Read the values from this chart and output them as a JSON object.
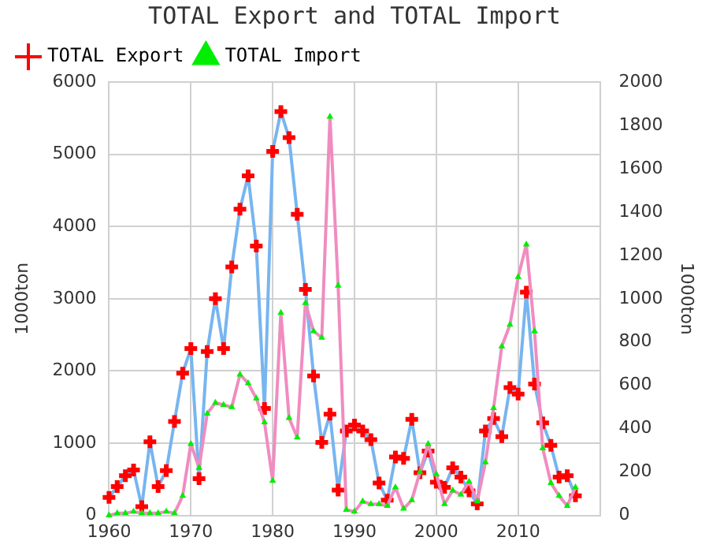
{
  "chart_data": {
    "type": "line",
    "title": "TOTAL Export and TOTAL Import",
    "ylabel": "1000ton",
    "y2label": "1000ton",
    "x": [
      1960,
      1961,
      1962,
      1963,
      1964,
      1965,
      1966,
      1967,
      1968,
      1969,
      1970,
      1971,
      1972,
      1973,
      1974,
      1975,
      1976,
      1977,
      1978,
      1979,
      1980,
      1981,
      1982,
      1983,
      1984,
      1985,
      1986,
      1987,
      1988,
      1989,
      1990,
      1991,
      1992,
      1993,
      1994,
      1995,
      1996,
      1997,
      1998,
      1999,
      2000,
      2001,
      2002,
      2003,
      2004,
      2005,
      2006,
      2007,
      2008,
      2009,
      2010,
      2011,
      2012,
      2013,
      2014,
      2015,
      2016,
      2017
    ],
    "series": [
      {
        "name": "TOTAL Export",
        "color": "#77b5f0",
        "marker": "cross",
        "colors": [
          "#ff0000",
          "#ff0000",
          "#ff0000",
          "#ff0000",
          "#ff0000",
          "#ff0000",
          "#ff0000",
          "#ff0000",
          "#ff0000",
          "#ff0000",
          "#ff0000",
          "#ff0000",
          "#ff0000",
          "#ff0000",
          "#ff0000",
          "#ff0000",
          "#ff0000",
          "#ff0000",
          "#ff0000",
          "#ff0000",
          "#ff0000",
          "#ff0000",
          "#ff0000",
          "#ff0000",
          "#ff0000",
          "#ff0000",
          "#ff0000",
          "#ff0000",
          "#ff0000",
          "#ff0000",
          "#ff0000",
          "#ff0000",
          "#ff0000",
          "#ff0000",
          "#ff0000",
          "#ff0000",
          "#ff0000",
          "#ff0000",
          "#ff0000",
          "#ff0000",
          "#ff0000",
          "#ff0000",
          "#ff0000",
          "#ff0000",
          "#ff0000",
          "#ff0000",
          "#ff0000",
          "#ff0000",
          "#ff0000",
          "#ff0000",
          "#ff0000",
          "#ff0000",
          "#ff0000",
          "#ff0000",
          "#ff0000",
          "#ff0000",
          "#ff0000",
          "#ff0000"
        ],
        "values": [
          250,
          400,
          550,
          630,
          120,
          1020,
          400,
          620,
          1300,
          1970,
          2310,
          510,
          2270,
          3000,
          2310,
          3440,
          4240,
          4700,
          3730,
          1480,
          5040,
          5590,
          5230,
          4170,
          3130,
          1930,
          1010,
          1400,
          350,
          1170,
          1250,
          1170,
          1050,
          450,
          210,
          810,
          790,
          1330,
          590,
          890,
          460,
          390,
          660,
          530,
          340,
          160,
          1170,
          1340,
          1090,
          1770,
          1680,
          3090,
          1820,
          1280,
          970,
          530,
          550,
          270
        ]
      },
      {
        "name": "TOTAL Import",
        "axis": "y2",
        "color": "#f08cc0",
        "marker": "triangle",
        "colors": [
          "#00ee00",
          "#00ee00",
          "#00ee00",
          "#00ee00",
          "#00ee00",
          "#00ee00",
          "#00ee00",
          "#00ee00",
          "#00ee00",
          "#00ee00",
          "#00ee00",
          "#00ee00",
          "#00ee00",
          "#00ee00",
          "#00ee00",
          "#00ee00",
          "#00ee00",
          "#00ee00",
          "#00ee00",
          "#00ee00",
          "#00ee00",
          "#00ee00",
          "#00ee00",
          "#00ee00",
          "#00ee00",
          "#00ee00",
          "#00ee00",
          "#00ee00",
          "#00ee00",
          "#00ee00",
          "#00ee00",
          "#00ee00",
          "#00ee00",
          "#00ee00",
          "#00ee00",
          "#00ee00",
          "#00ee00",
          "#00ee00",
          "#00ee00",
          "#00ee00",
          "#00ee00",
          "#00ee00",
          "#00ee00",
          "#00ee00",
          "#00ee00",
          "#00ee00",
          "#00ee00",
          "#00ee00",
          "#00ee00",
          "#00ee00",
          "#00ee00",
          "#00ee00",
          "#00ee00",
          "#00ee00",
          "#00ee00",
          "#00ee00",
          "#00ee00",
          "#00ee00"
        ],
        "values": [
          0,
          10,
          10,
          18,
          10,
          10,
          10,
          18,
          10,
          90,
          330,
          220,
          470,
          520,
          510,
          500,
          650,
          610,
          540,
          430,
          160,
          935,
          450,
          360,
          980,
          850,
          820,
          1840,
          1060,
          26,
          18,
          65,
          52,
          52,
          44,
          130,
          31,
          70,
          200,
          330,
          190,
          52,
          115,
          96,
          156,
          65,
          245,
          495,
          780,
          880,
          1100,
          1250,
          850,
          310,
          150,
          90,
          44,
          130
        ]
      }
    ],
    "xlim": [
      1960,
      2020
    ],
    "xticks": [
      1960,
      1970,
      1980,
      1990,
      2000,
      2010
    ],
    "ylim": [
      0,
      6000
    ],
    "yticks": [
      0,
      1000,
      2000,
      3000,
      4000,
      5000,
      6000
    ],
    "y2lim": [
      0,
      2000
    ],
    "y2ticks": [
      0,
      200,
      400,
      600,
      800,
      1000,
      1200,
      1400,
      1600,
      1800,
      2000
    ],
    "grid": true,
    "legend": "top left"
  }
}
